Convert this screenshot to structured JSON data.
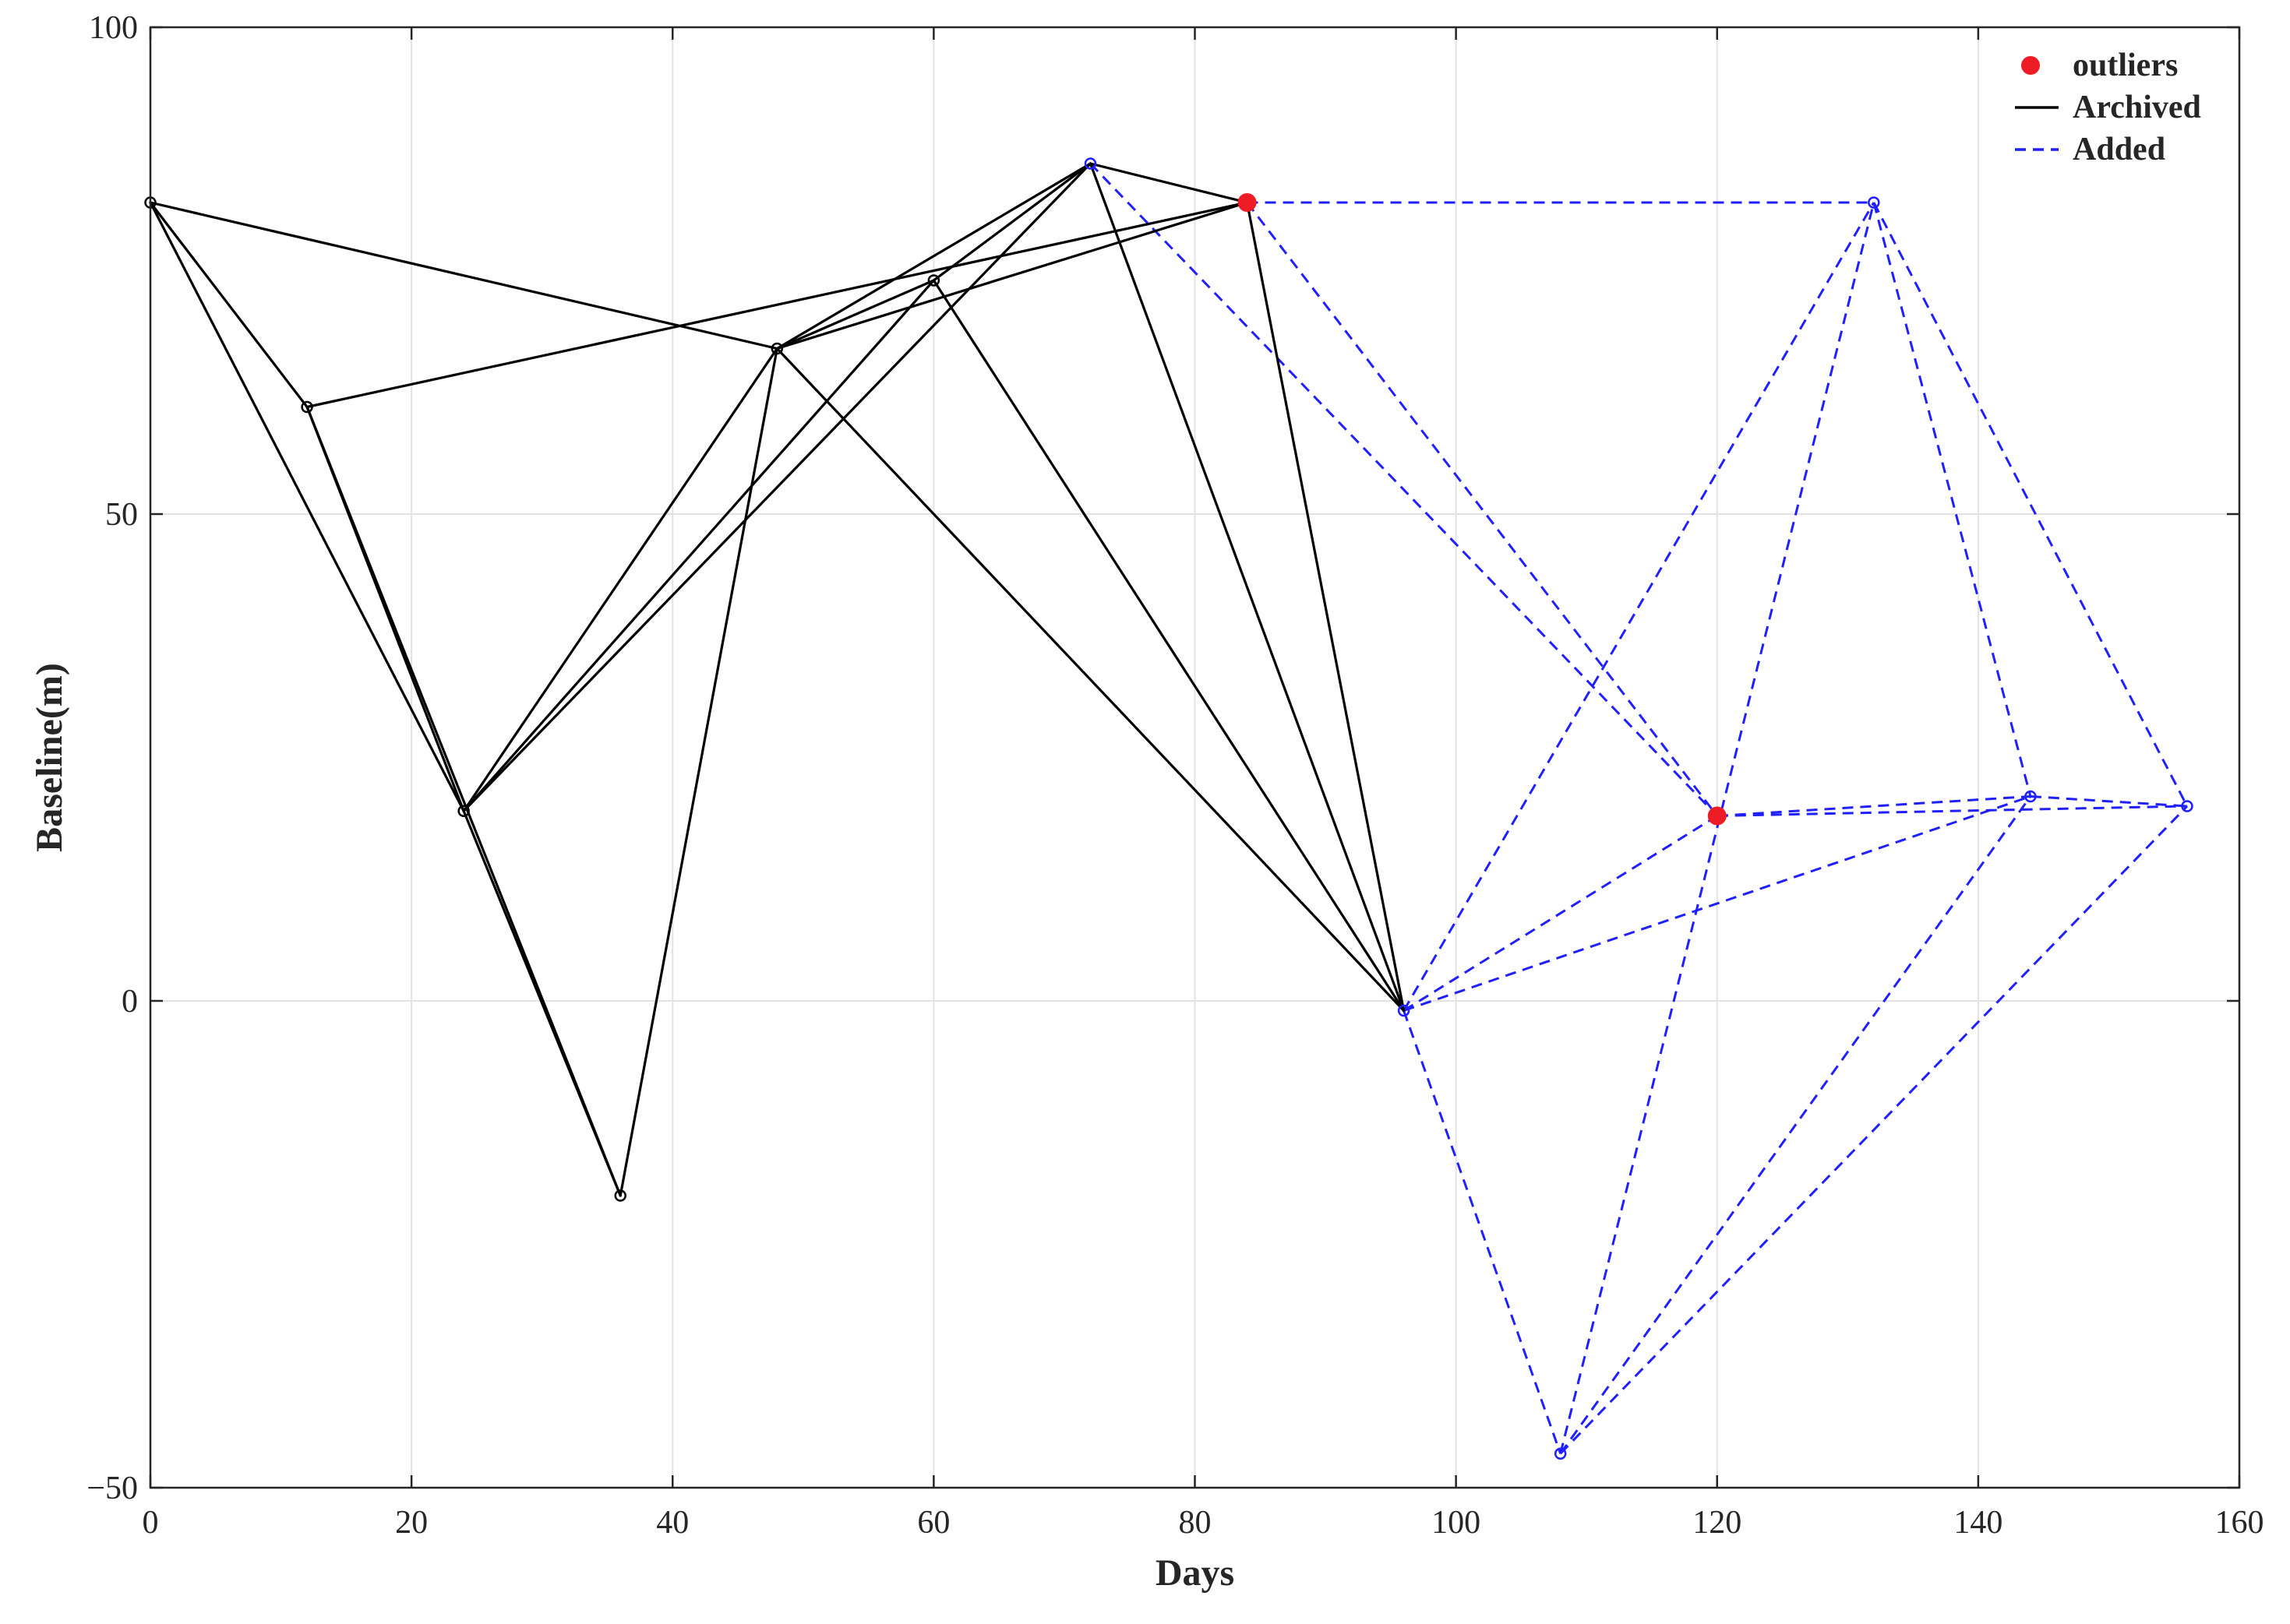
{
  "chart_data": {
    "type": "scatter",
    "title": "",
    "xlabel": "Days",
    "ylabel": "Baseline(m)",
    "xlim": [
      0,
      160
    ],
    "ylim": [
      -50,
      100
    ],
    "xticks": [
      0,
      20,
      40,
      60,
      80,
      100,
      120,
      140,
      160
    ],
    "yticks": [
      -50,
      0,
      50,
      100
    ],
    "grid": true,
    "legend_position": "top-right",
    "legend": [
      {
        "label": "outliers",
        "kind": "marker",
        "color": "#ee1c24"
      },
      {
        "label": "Archived",
        "kind": "line",
        "color": "#000000",
        "style": "solid"
      },
      {
        "label": "Added",
        "kind": "line",
        "color": "#1f1fff",
        "style": "dashed"
      }
    ],
    "nodes": [
      {
        "x": 0,
        "y": 82,
        "group": "Archived"
      },
      {
        "x": 12,
        "y": 61,
        "group": "Archived"
      },
      {
        "x": 24,
        "y": 19.5,
        "group": "Archived"
      },
      {
        "x": 36,
        "y": -20,
        "group": "Archived"
      },
      {
        "x": 48,
        "y": 67,
        "group": "Archived"
      },
      {
        "x": 60,
        "y": 74,
        "group": "Archived"
      },
      {
        "x": 72,
        "y": 86,
        "group": "Added"
      },
      {
        "x": 84,
        "y": 82,
        "group": "outliers"
      },
      {
        "x": 96,
        "y": -1,
        "group": "Added"
      },
      {
        "x": 108,
        "y": -46.5,
        "group": "Added"
      },
      {
        "x": 120,
        "y": 19,
        "group": "outliers"
      },
      {
        "x": 132,
        "y": 82,
        "group": "Added"
      },
      {
        "x": 144,
        "y": 21,
        "group": "Added"
      },
      {
        "x": 156,
        "y": 20,
        "group": "Added"
      }
    ],
    "series": [
      {
        "name": "Archived",
        "color": "#000000",
        "style": "solid",
        "edges": [
          [
            [
              0,
              82
            ],
            [
              12,
              61
            ]
          ],
          [
            [
              0,
              82
            ],
            [
              24,
              19.5
            ]
          ],
          [
            [
              0,
              82
            ],
            [
              48,
              67
            ]
          ],
          [
            [
              12,
              61
            ],
            [
              24,
              19.5
            ]
          ],
          [
            [
              12,
              61
            ],
            [
              36,
              -20
            ]
          ],
          [
            [
              12,
              61
            ],
            [
              84,
              82
            ]
          ],
          [
            [
              24,
              19.5
            ],
            [
              36,
              -20
            ]
          ],
          [
            [
              24,
              19.5
            ],
            [
              48,
              67
            ]
          ],
          [
            [
              24,
              19.5
            ],
            [
              60,
              74
            ]
          ],
          [
            [
              24,
              19.5
            ],
            [
              72,
              86
            ]
          ],
          [
            [
              36,
              -20
            ],
            [
              48,
              67
            ]
          ],
          [
            [
              48,
              67
            ],
            [
              60,
              74
            ]
          ],
          [
            [
              48,
              67
            ],
            [
              72,
              86
            ]
          ],
          [
            [
              48,
              67
            ],
            [
              84,
              82
            ]
          ],
          [
            [
              48,
              67
            ],
            [
              96,
              -1
            ]
          ],
          [
            [
              60,
              74
            ],
            [
              72,
              86
            ]
          ],
          [
            [
              60,
              74
            ],
            [
              96,
              -1
            ]
          ],
          [
            [
              72,
              86
            ],
            [
              84,
              82
            ]
          ],
          [
            [
              72,
              86
            ],
            [
              96,
              -1
            ]
          ],
          [
            [
              84,
              82
            ],
            [
              96,
              -1
            ]
          ]
        ]
      },
      {
        "name": "Added",
        "color": "#1f1fff",
        "style": "dashed",
        "edges": [
          [
            [
              72,
              86
            ],
            [
              120,
              19
            ]
          ],
          [
            [
              84,
              82
            ],
            [
              120,
              19
            ]
          ],
          [
            [
              84,
              82
            ],
            [
              132,
              82
            ]
          ],
          [
            [
              96,
              -1
            ],
            [
              108,
              -46.5
            ]
          ],
          [
            [
              96,
              -1
            ],
            [
              120,
              19
            ]
          ],
          [
            [
              96,
              -1
            ],
            [
              132,
              82
            ]
          ],
          [
            [
              96,
              -1
            ],
            [
              144,
              21
            ]
          ],
          [
            [
              108,
              -46.5
            ],
            [
              132,
              82
            ]
          ],
          [
            [
              108,
              -46.5
            ],
            [
              144,
              21
            ]
          ],
          [
            [
              108,
              -46.5
            ],
            [
              156,
              20
            ]
          ],
          [
            [
              120,
              19
            ],
            [
              144,
              21
            ]
          ],
          [
            [
              120,
              19
            ],
            [
              156,
              20
            ]
          ],
          [
            [
              132,
              82
            ],
            [
              144,
              21
            ]
          ],
          [
            [
              132,
              82
            ],
            [
              156,
              20
            ]
          ],
          [
            [
              144,
              21
            ],
            [
              156,
              20
            ]
          ]
        ]
      }
    ]
  }
}
